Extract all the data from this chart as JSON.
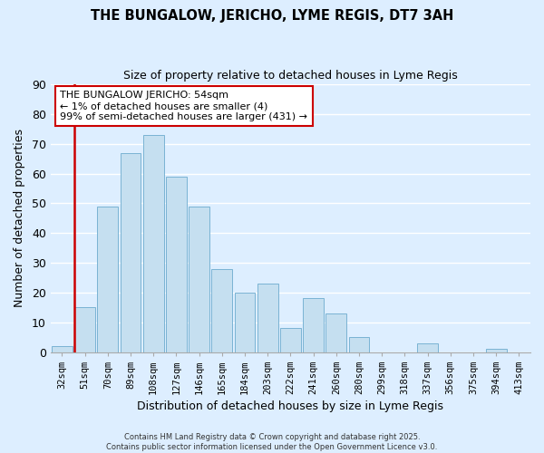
{
  "title": "THE BUNGALOW, JERICHO, LYME REGIS, DT7 3AH",
  "subtitle": "Size of property relative to detached houses in Lyme Regis",
  "xlabel": "Distribution of detached houses by size in Lyme Regis",
  "ylabel": "Number of detached properties",
  "bar_labels": [
    "32sqm",
    "51sqm",
    "70sqm",
    "89sqm",
    "108sqm",
    "127sqm",
    "146sqm",
    "165sqm",
    "184sqm",
    "203sqm",
    "222sqm",
    "241sqm",
    "260sqm",
    "280sqm",
    "299sqm",
    "318sqm",
    "337sqm",
    "356sqm",
    "375sqm",
    "394sqm",
    "413sqm"
  ],
  "bar_values": [
    2,
    15,
    49,
    67,
    73,
    59,
    49,
    28,
    20,
    23,
    8,
    18,
    13,
    5,
    0,
    0,
    3,
    0,
    0,
    1,
    0
  ],
  "bar_color": "#c5dff0",
  "bar_edge_color": "#7ab3d3",
  "vline_x_index": 1,
  "vline_color": "#cc0000",
  "ylim": [
    0,
    90
  ],
  "yticks": [
    0,
    10,
    20,
    30,
    40,
    50,
    60,
    70,
    80,
    90
  ],
  "annotation_title": "THE BUNGALOW JERICHO: 54sqm",
  "annotation_line1": "← 1% of detached houses are smaller (4)",
  "annotation_line2": "99% of semi-detached houses are larger (431) →",
  "annotation_box_color": "#ffffff",
  "annotation_box_edge": "#cc0000",
  "footer1": "Contains HM Land Registry data © Crown copyright and database right 2025.",
  "footer2": "Contains public sector information licensed under the Open Government Licence v3.0.",
  "background_color": "#ddeeff",
  "grid_color": "#ffffff"
}
